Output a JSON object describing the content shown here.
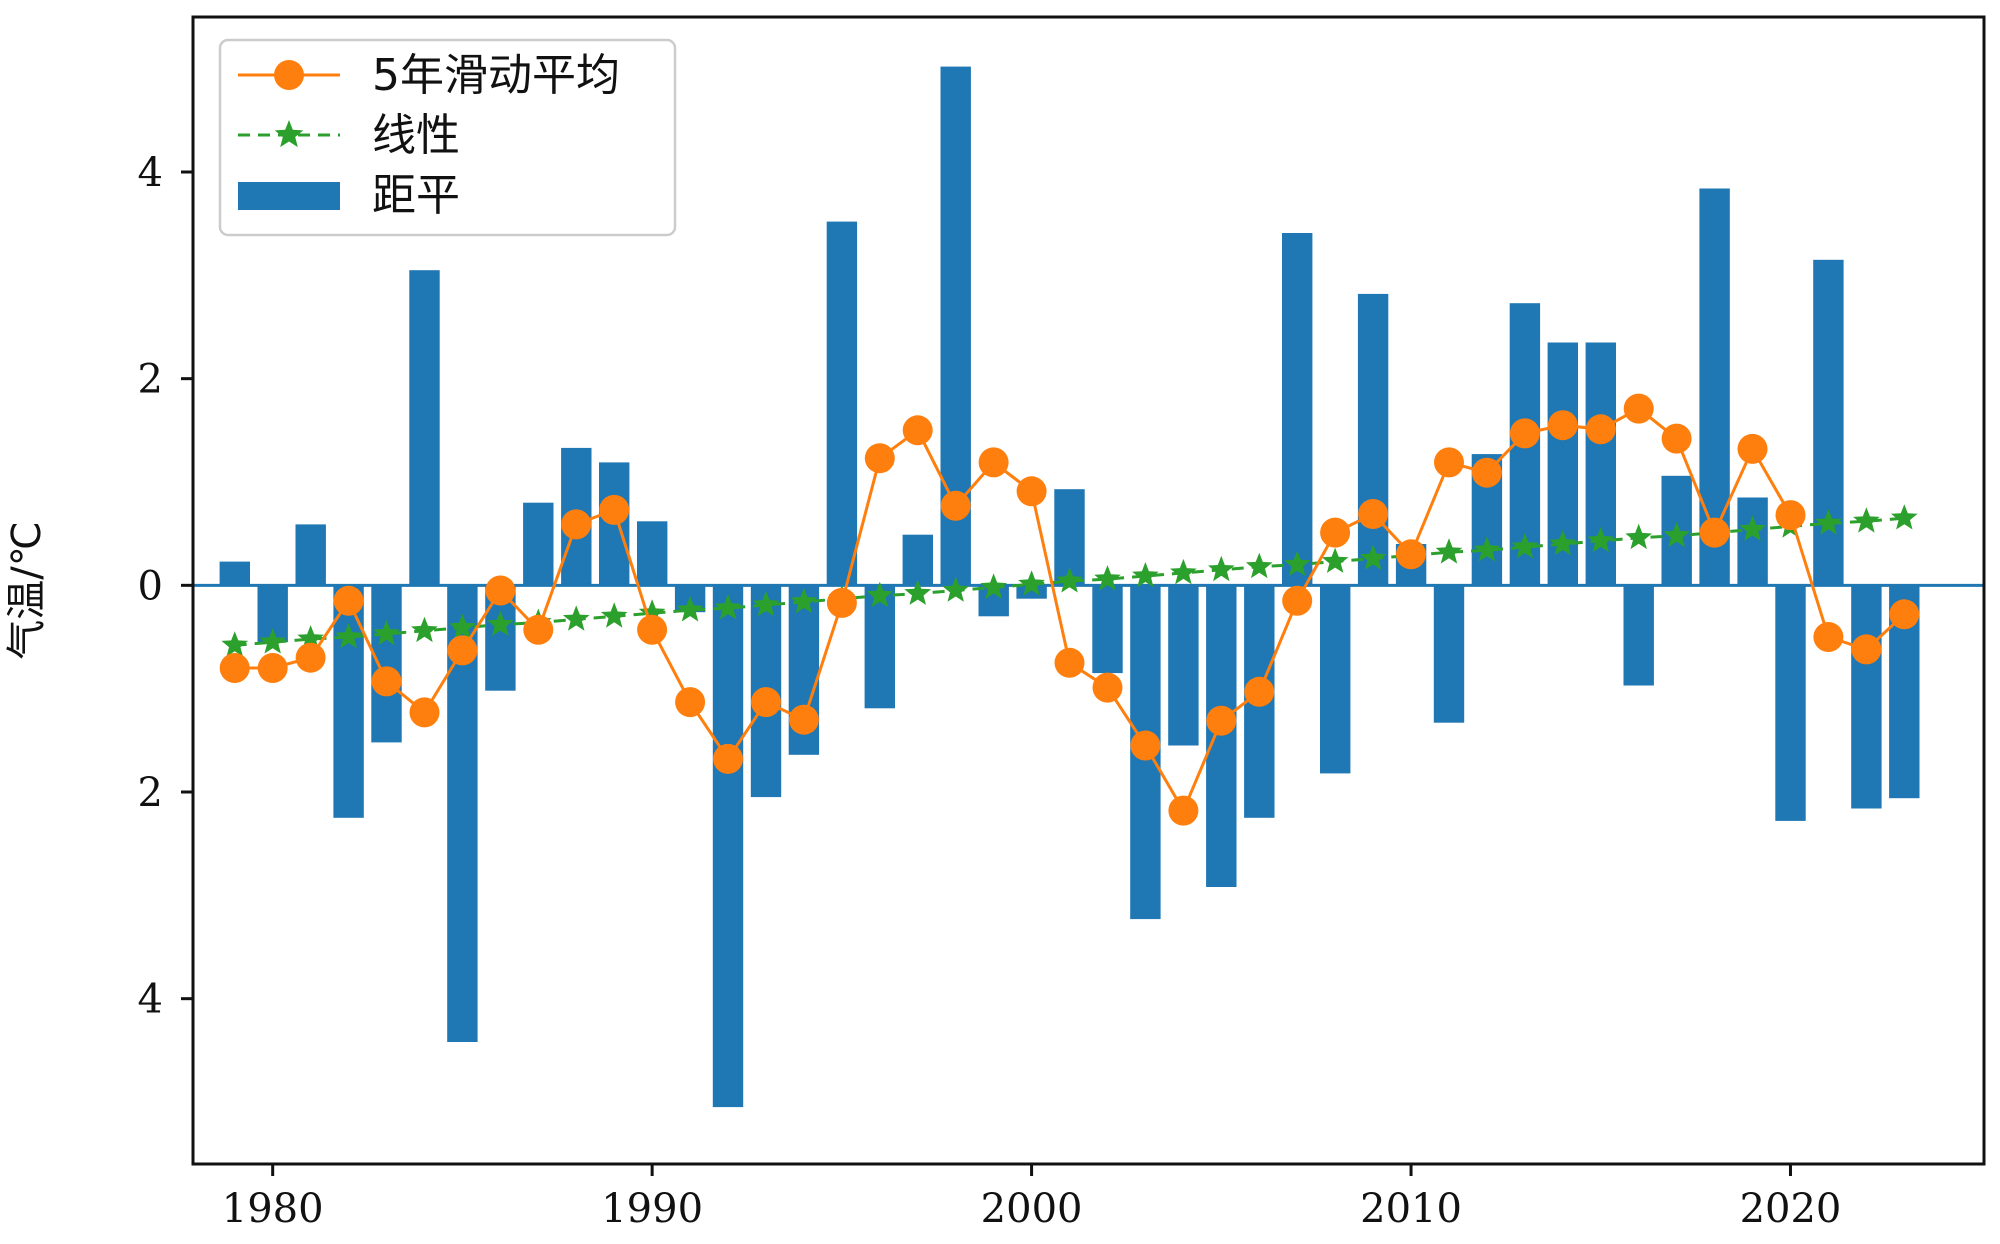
{
  "chart_data": {
    "type": "bar",
    "title": "",
    "xlabel": "",
    "ylabel": "气温/℃",
    "xlim": [
      1977.9,
      2025.1
    ],
    "ylim": [
      -5.6,
      5.5
    ],
    "grid": false,
    "legend_position": "top-left",
    "x": [
      1979,
      1980,
      1981,
      1982,
      1983,
      1984,
      1985,
      1986,
      1987,
      1988,
      1989,
      1990,
      1991,
      1992,
      1993,
      1994,
      1995,
      1996,
      1997,
      1998,
      1999,
      2000,
      2001,
      2002,
      2003,
      2004,
      2005,
      2006,
      2007,
      2008,
      2009,
      2010,
      2011,
      2012,
      2013,
      2014,
      2015,
      2016,
      2017,
      2018,
      2019,
      2020,
      2021,
      2022,
      2023
    ],
    "x_ticks": [
      {
        "value": 1980,
        "label": "1980"
      },
      {
        "value": 1990,
        "label": "1990"
      },
      {
        "value": 2000,
        "label": "2000"
      },
      {
        "value": 2010,
        "label": "2010"
      },
      {
        "value": 2020,
        "label": "2020"
      }
    ],
    "y_ticks": [
      {
        "value": 4,
        "label": "4"
      },
      {
        "value": 2,
        "label": "2"
      },
      {
        "value": 0,
        "label": "0"
      },
      {
        "value": -2,
        "label": "2"
      },
      {
        "value": -4,
        "label": "4"
      }
    ],
    "series": [
      {
        "name": "距平",
        "kind": "bar",
        "color": "#1f77b4",
        "values": [
          0.23,
          -0.55,
          0.59,
          -2.25,
          -1.52,
          3.05,
          -4.42,
          -1.02,
          0.8,
          1.33,
          1.19,
          0.62,
          -0.26,
          -5.05,
          -2.05,
          -1.64,
          3.52,
          -1.19,
          0.49,
          5.02,
          -0.3,
          -0.13,
          0.93,
          -0.85,
          -3.23,
          -1.55,
          -2.92,
          -2.25,
          3.41,
          -1.82,
          2.82,
          0.4,
          -1.33,
          1.27,
          2.73,
          2.35,
          2.35,
          -0.97,
          1.06,
          3.84,
          0.85,
          -2.28,
          3.15,
          -2.16,
          -2.06
        ]
      },
      {
        "name": "5年滑动平均",
        "kind": "line",
        "marker": "circle",
        "color": "#ff7f0e",
        "values": [
          -0.8,
          -0.8,
          -0.7,
          -0.15,
          -0.93,
          -1.23,
          -0.63,
          -0.05,
          -0.43,
          0.59,
          0.73,
          -0.43,
          -1.13,
          -1.68,
          -1.13,
          -1.3,
          -0.17,
          1.23,
          1.5,
          0.77,
          1.19,
          0.91,
          -0.75,
          -0.99,
          -1.55,
          -2.18,
          -1.31,
          -1.03,
          -0.15,
          0.51,
          0.69,
          0.3,
          1.19,
          1.09,
          1.47,
          1.55,
          1.51,
          1.71,
          1.42,
          0.51,
          1.32,
          0.68,
          -0.5,
          -0.62,
          -0.28
        ]
      },
      {
        "name": "线性",
        "kind": "line",
        "marker": "star",
        "dashed": true,
        "color": "#2ca02c",
        "values": [
          -0.58,
          -0.55,
          -0.52,
          -0.5,
          -0.47,
          -0.44,
          -0.41,
          -0.38,
          -0.36,
          -0.33,
          -0.3,
          -0.27,
          -0.24,
          -0.22,
          -0.19,
          -0.16,
          -0.13,
          -0.1,
          -0.08,
          -0.05,
          -0.02,
          0.01,
          0.04,
          0.06,
          0.09,
          0.12,
          0.15,
          0.18,
          0.2,
          0.23,
          0.26,
          0.29,
          0.32,
          0.34,
          0.37,
          0.4,
          0.43,
          0.46,
          0.48,
          0.51,
          0.54,
          0.57,
          0.6,
          0.62,
          0.65
        ]
      }
    ],
    "legend_order": [
      "5年滑动平均",
      "线性",
      "距平"
    ],
    "zero_line_color": "#1f77b4"
  }
}
